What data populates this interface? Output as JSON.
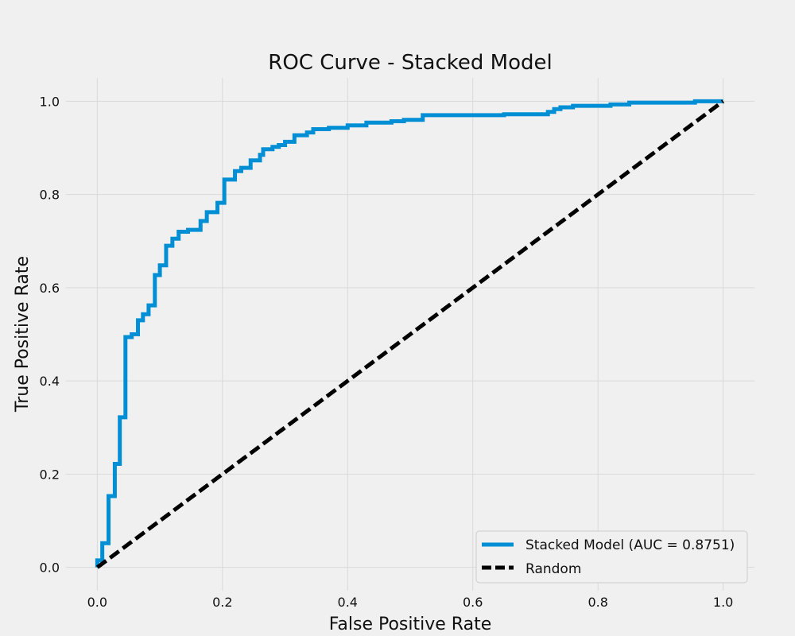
{
  "chart_data": {
    "type": "line",
    "title": "ROC Curve - Stacked Model",
    "xlabel": "False Positive Rate",
    "ylabel": "True Positive Rate",
    "xlim": [
      -0.05,
      1.05
    ],
    "ylim": [
      -0.05,
      1.05
    ],
    "xticks": [
      0.0,
      0.2,
      0.4,
      0.6,
      0.8,
      1.0
    ],
    "xtick_labels": [
      "0.0",
      "0.2",
      "0.4",
      "0.6",
      "0.8",
      "1.0"
    ],
    "yticks": [
      0.0,
      0.2,
      0.4,
      0.6,
      0.8,
      1.0
    ],
    "ytick_labels": [
      "0.0",
      "0.2",
      "0.4",
      "0.6",
      "0.8",
      "1.0"
    ],
    "grid": true,
    "legend_position": "bottom-right",
    "series": [
      {
        "name": "Stacked Model (AUC = 0.8751)",
        "color": "#008fd5",
        "style": "solid",
        "x": [
          0.0,
          0.0,
          0.008,
          0.008,
          0.018,
          0.018,
          0.028,
          0.028,
          0.036,
          0.036,
          0.045,
          0.045,
          0.055,
          0.055,
          0.065,
          0.065,
          0.073,
          0.073,
          0.082,
          0.082,
          0.092,
          0.092,
          0.1,
          0.1,
          0.11,
          0.11,
          0.12,
          0.12,
          0.13,
          0.13,
          0.145,
          0.145,
          0.165,
          0.165,
          0.175,
          0.175,
          0.192,
          0.192,
          0.203,
          0.203,
          0.22,
          0.22,
          0.23,
          0.23,
          0.245,
          0.245,
          0.26,
          0.26,
          0.265,
          0.265,
          0.28,
          0.28,
          0.29,
          0.29,
          0.3,
          0.3,
          0.315,
          0.315,
          0.335,
          0.335,
          0.345,
          0.345,
          0.37,
          0.37,
          0.4,
          0.4,
          0.43,
          0.43,
          0.47,
          0.47,
          0.49,
          0.49,
          0.52,
          0.52,
          0.65,
          0.65,
          0.72,
          0.72,
          0.73,
          0.73,
          0.74,
          0.74,
          0.76,
          0.76,
          0.82,
          0.82,
          0.85,
          0.85,
          0.955,
          0.955,
          1.0
        ],
        "y": [
          0.0,
          0.015,
          0.015,
          0.052,
          0.052,
          0.153,
          0.153,
          0.222,
          0.222,
          0.322,
          0.322,
          0.494,
          0.494,
          0.5,
          0.5,
          0.53,
          0.53,
          0.543,
          0.543,
          0.562,
          0.562,
          0.627,
          0.627,
          0.648,
          0.648,
          0.69,
          0.69,
          0.705,
          0.705,
          0.72,
          0.72,
          0.724,
          0.724,
          0.743,
          0.743,
          0.762,
          0.762,
          0.782,
          0.782,
          0.832,
          0.832,
          0.85,
          0.85,
          0.857,
          0.857,
          0.873,
          0.873,
          0.885,
          0.885,
          0.897,
          0.897,
          0.902,
          0.902,
          0.906,
          0.906,
          0.913,
          0.913,
          0.927,
          0.927,
          0.933,
          0.933,
          0.94,
          0.94,
          0.943,
          0.943,
          0.948,
          0.948,
          0.954,
          0.954,
          0.957,
          0.957,
          0.96,
          0.96,
          0.97,
          0.97,
          0.972,
          0.972,
          0.977,
          0.977,
          0.983,
          0.983,
          0.987,
          0.987,
          0.99,
          0.99,
          0.993,
          0.993,
          0.997,
          0.997,
          1.0,
          1.0
        ]
      },
      {
        "name": "Random",
        "color": "#000000",
        "style": "dashed",
        "x": [
          0.0,
          1.0
        ],
        "y": [
          0.0,
          1.0
        ]
      }
    ]
  }
}
